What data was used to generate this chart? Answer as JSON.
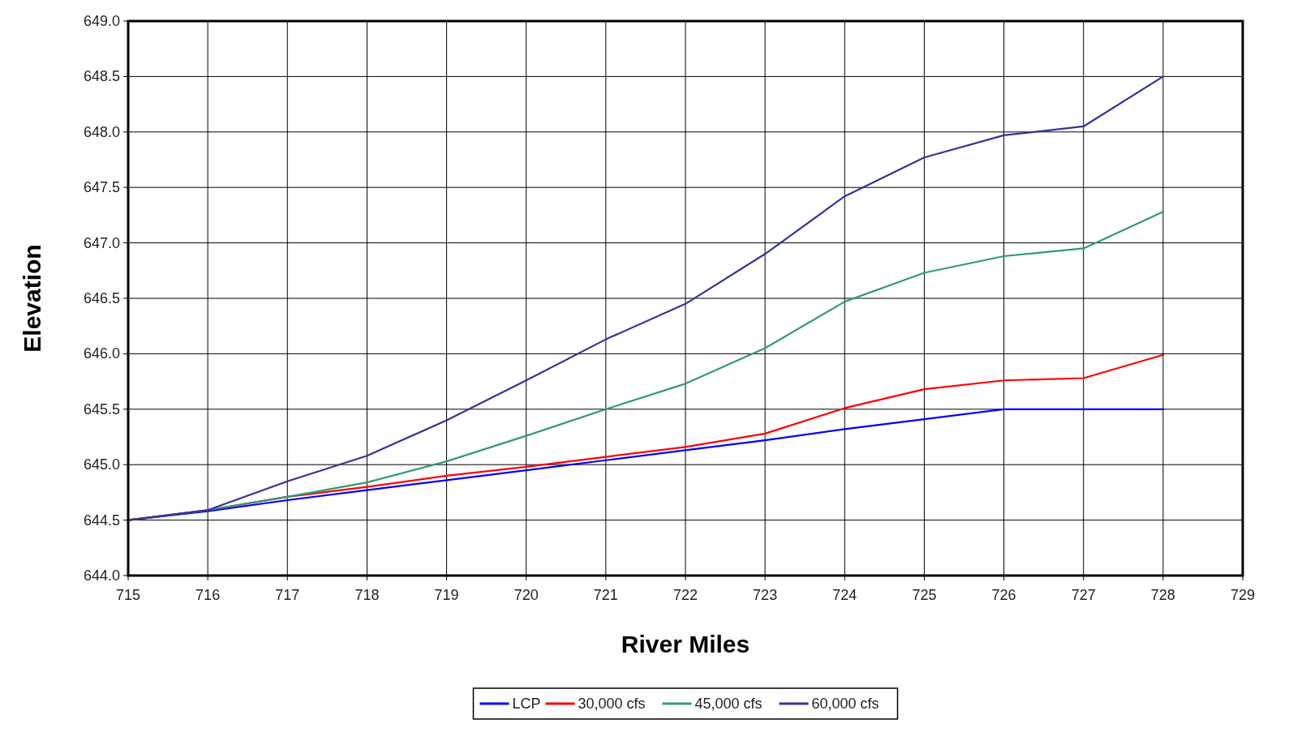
{
  "chart_data": {
    "type": "line",
    "xlabel": "River Miles",
    "ylabel": "Elevation",
    "x": [
      715,
      716,
      717,
      718,
      719,
      720,
      721,
      722,
      723,
      724,
      725,
      726,
      727,
      728
    ],
    "series": [
      {
        "name": "LCP",
        "color": "#0000ff",
        "values": [
          644.5,
          644.58,
          644.68,
          644.77,
          644.86,
          644.95,
          645.04,
          645.13,
          645.22,
          645.32,
          645.41,
          645.5,
          645.5,
          645.5
        ]
      },
      {
        "name": "30,000 cfs",
        "color": "#ff0000",
        "values": [
          644.5,
          644.59,
          644.71,
          644.8,
          644.9,
          644.98,
          645.07,
          645.16,
          645.28,
          645.51,
          645.68,
          645.76,
          645.78,
          645.99
        ]
      },
      {
        "name": "45,000 cfs",
        "color": "#339977",
        "values": [
          644.5,
          644.59,
          644.71,
          644.84,
          645.03,
          645.26,
          645.5,
          645.73,
          646.05,
          646.47,
          646.73,
          646.88,
          646.95,
          647.28
        ]
      },
      {
        "name": "60,000 cfs",
        "color": "#333399",
        "values": [
          644.5,
          644.59,
          644.85,
          645.08,
          645.4,
          645.76,
          646.13,
          646.45,
          646.9,
          647.42,
          647.77,
          647.97,
          648.05,
          648.5
        ]
      }
    ],
    "xlim": [
      715,
      729
    ],
    "xticks": [
      715,
      716,
      717,
      718,
      719,
      720,
      721,
      722,
      723,
      724,
      725,
      726,
      727,
      728,
      729
    ],
    "ylim": [
      644,
      649
    ],
    "yticks": [
      {
        "value": 644,
        "label": "644.0"
      },
      {
        "value": 644.5,
        "label": "644.5"
      },
      {
        "value": 645,
        "label": "645.0"
      },
      {
        "value": 645.5,
        "label": "645.5"
      },
      {
        "value": 646,
        "label": "646.0"
      },
      {
        "value": 646.5,
        "label": "646.5"
      },
      {
        "value": 647,
        "label": "647.0"
      },
      {
        "value": 647.5,
        "label": "647.5"
      },
      {
        "value": 648,
        "label": "648.0"
      },
      {
        "value": 648.5,
        "label": "648.5"
      },
      {
        "value": 649,
        "label": "649.0"
      }
    ],
    "grid": true,
    "legend": "bottom",
    "marker": "none",
    "line_style": "solid"
  }
}
